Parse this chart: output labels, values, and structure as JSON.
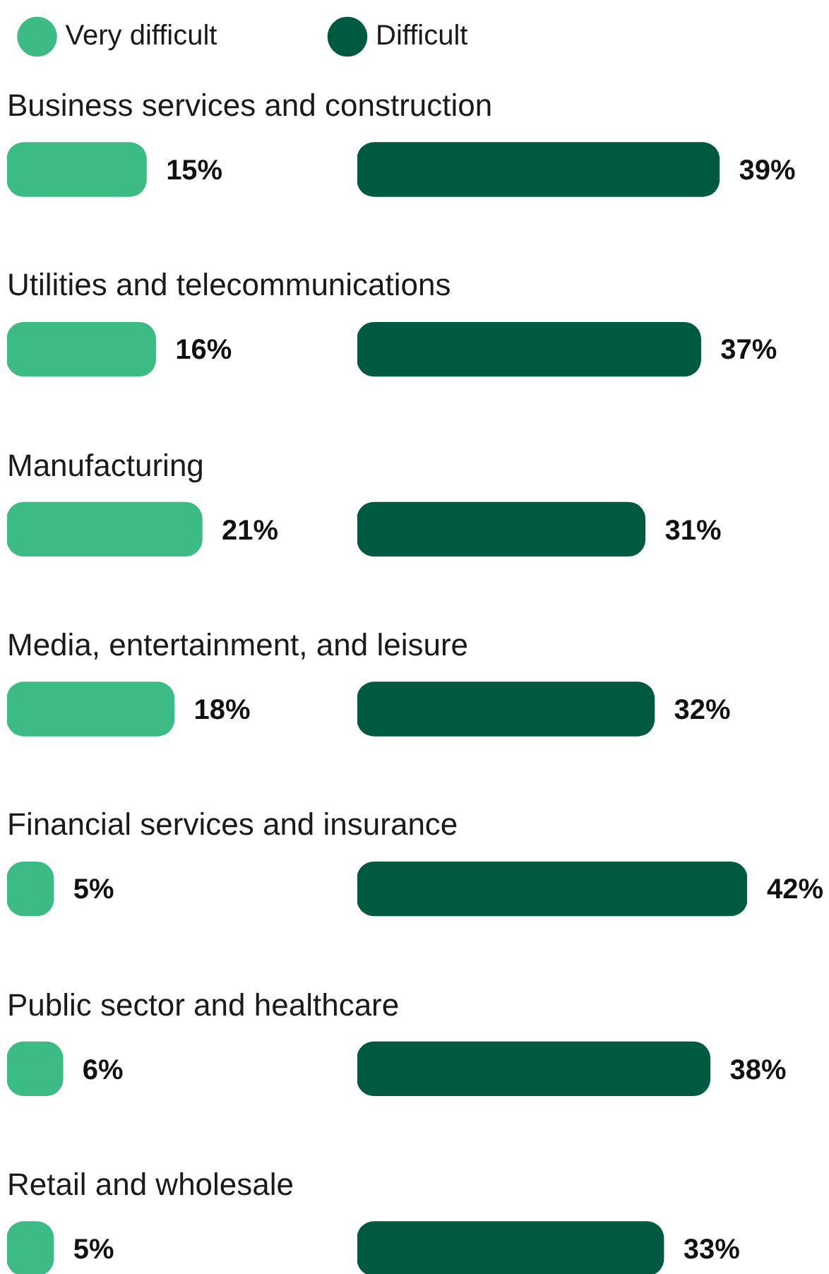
{
  "chart_data": [
    {
      "type": "bar",
      "orientation": "horizontal",
      "categories": [
        "Business services and construction",
        "Utilities and telecommunications",
        "Manufacturing",
        "Media, entertainment, and leisure",
        "Financial services and insurance",
        "Public sector and healthcare",
        "Retail and wholesale"
      ],
      "series": [
        {
          "name": "Very difficult",
          "color": "#3dbb84",
          "values": [
            15,
            16,
            21,
            18,
            5,
            6,
            5
          ],
          "value_labels": [
            "15%",
            "16%",
            "21%",
            "18%",
            "5%",
            "6%",
            "5%"
          ]
        }
      ],
      "legend": "top",
      "tick_labels": "y"
    },
    {
      "type": "bar",
      "orientation": "horizontal",
      "categories": [
        null,
        null,
        null,
        null,
        null,
        null,
        null
      ],
      "series": [
        {
          "name": "Difficult",
          "color": "#005a41",
          "values": [
            39,
            37,
            31,
            32,
            42,
            38,
            33
          ],
          "value_labels": [
            "39%",
            "37%",
            "31%",
            "32%",
            "42%",
            "38%",
            "33%"
          ]
        }
      ],
      "legend": "top left",
      "tick_labels": false
    }
  ]
}
